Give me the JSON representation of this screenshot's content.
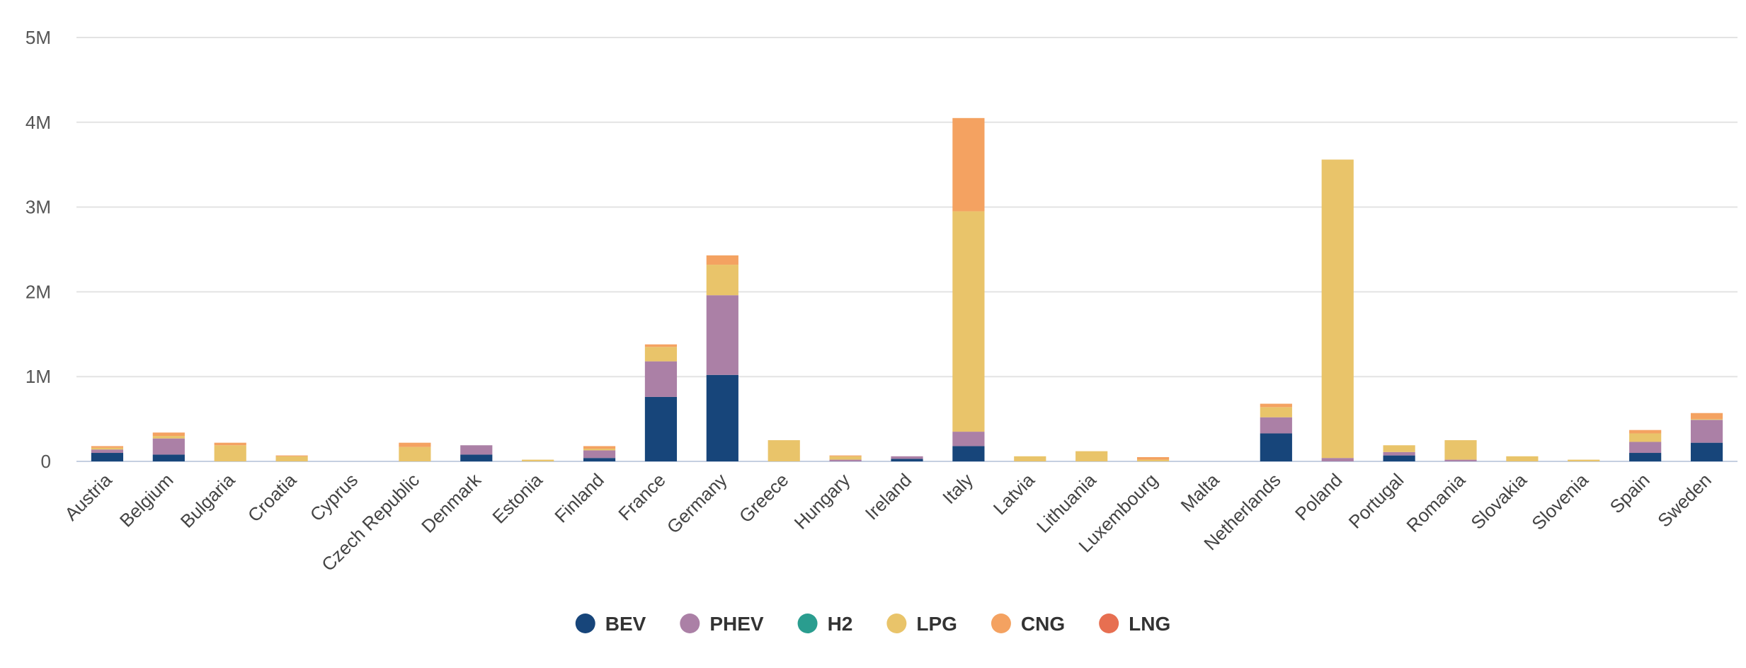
{
  "chart_data": {
    "type": "bar",
    "stacked": true,
    "categories": [
      "Austria",
      "Belgium",
      "Bulgaria",
      "Croatia",
      "Cyprus",
      "Czech Republic",
      "Denmark",
      "Estonia",
      "Finland",
      "France",
      "Germany",
      "Greece",
      "Hungary",
      "Ireland",
      "Italy",
      "Latvia",
      "Lithuania",
      "Luxembourg",
      "Malta",
      "Netherlands",
      "Poland",
      "Portugal",
      "Romania",
      "Slovakia",
      "Slovenia",
      "Spain",
      "Sweden"
    ],
    "series": [
      {
        "name": "BEV",
        "color": "#17457a",
        "values": [
          100000,
          80000,
          0,
          0,
          0,
          0,
          80000,
          0,
          40000,
          760000,
          1020000,
          0,
          0,
          30000,
          180000,
          0,
          0,
          0,
          0,
          330000,
          0,
          70000,
          0,
          0,
          0,
          100000,
          220000
        ]
      },
      {
        "name": "PHEV",
        "color": "#ab80a6",
        "values": [
          40000,
          190000,
          0,
          0,
          0,
          0,
          110000,
          0,
          90000,
          420000,
          940000,
          0,
          20000,
          30000,
          170000,
          0,
          0,
          0,
          0,
          190000,
          40000,
          40000,
          20000,
          0,
          0,
          130000,
          270000
        ]
      },
      {
        "name": "H2",
        "color": "#2a9d8f",
        "values": [
          0,
          0,
          0,
          0,
          0,
          0,
          0,
          0,
          0,
          0,
          0,
          0,
          0,
          0,
          0,
          0,
          0,
          0,
          0,
          0,
          0,
          0,
          0,
          0,
          0,
          0,
          0
        ]
      },
      {
        "name": "LPG",
        "color": "#e9c46a",
        "values": [
          20000,
          30000,
          190000,
          60000,
          0,
          170000,
          0,
          20000,
          20000,
          170000,
          360000,
          250000,
          40000,
          0,
          2600000,
          60000,
          120000,
          20000,
          0,
          120000,
          3520000,
          80000,
          230000,
          60000,
          20000,
          100000,
          10000
        ]
      },
      {
        "name": "CNG",
        "color": "#f4a261",
        "values": [
          20000,
          40000,
          30000,
          10000,
          0,
          50000,
          0,
          0,
          30000,
          30000,
          110000,
          0,
          10000,
          0,
          1100000,
          0,
          0,
          30000,
          0,
          40000,
          0,
          0,
          0,
          0,
          0,
          40000,
          70000
        ]
      },
      {
        "name": "LNG",
        "color": "#e76f51",
        "values": [
          0,
          0,
          0,
          0,
          0,
          0,
          0,
          0,
          0,
          0,
          0,
          0,
          0,
          0,
          0,
          0,
          0,
          0,
          0,
          0,
          0,
          0,
          0,
          0,
          0,
          0,
          0
        ]
      }
    ],
    "ylim": [
      0,
      5000000
    ],
    "yticks": [
      0,
      1000000,
      2000000,
      3000000,
      4000000,
      5000000
    ],
    "ytick_labels": [
      "0",
      "1M",
      "2M",
      "3M",
      "4M",
      "5M"
    ],
    "grid": true,
    "legend_position": "bottom-center",
    "title": "",
    "xlabel": "",
    "ylabel": ""
  }
}
